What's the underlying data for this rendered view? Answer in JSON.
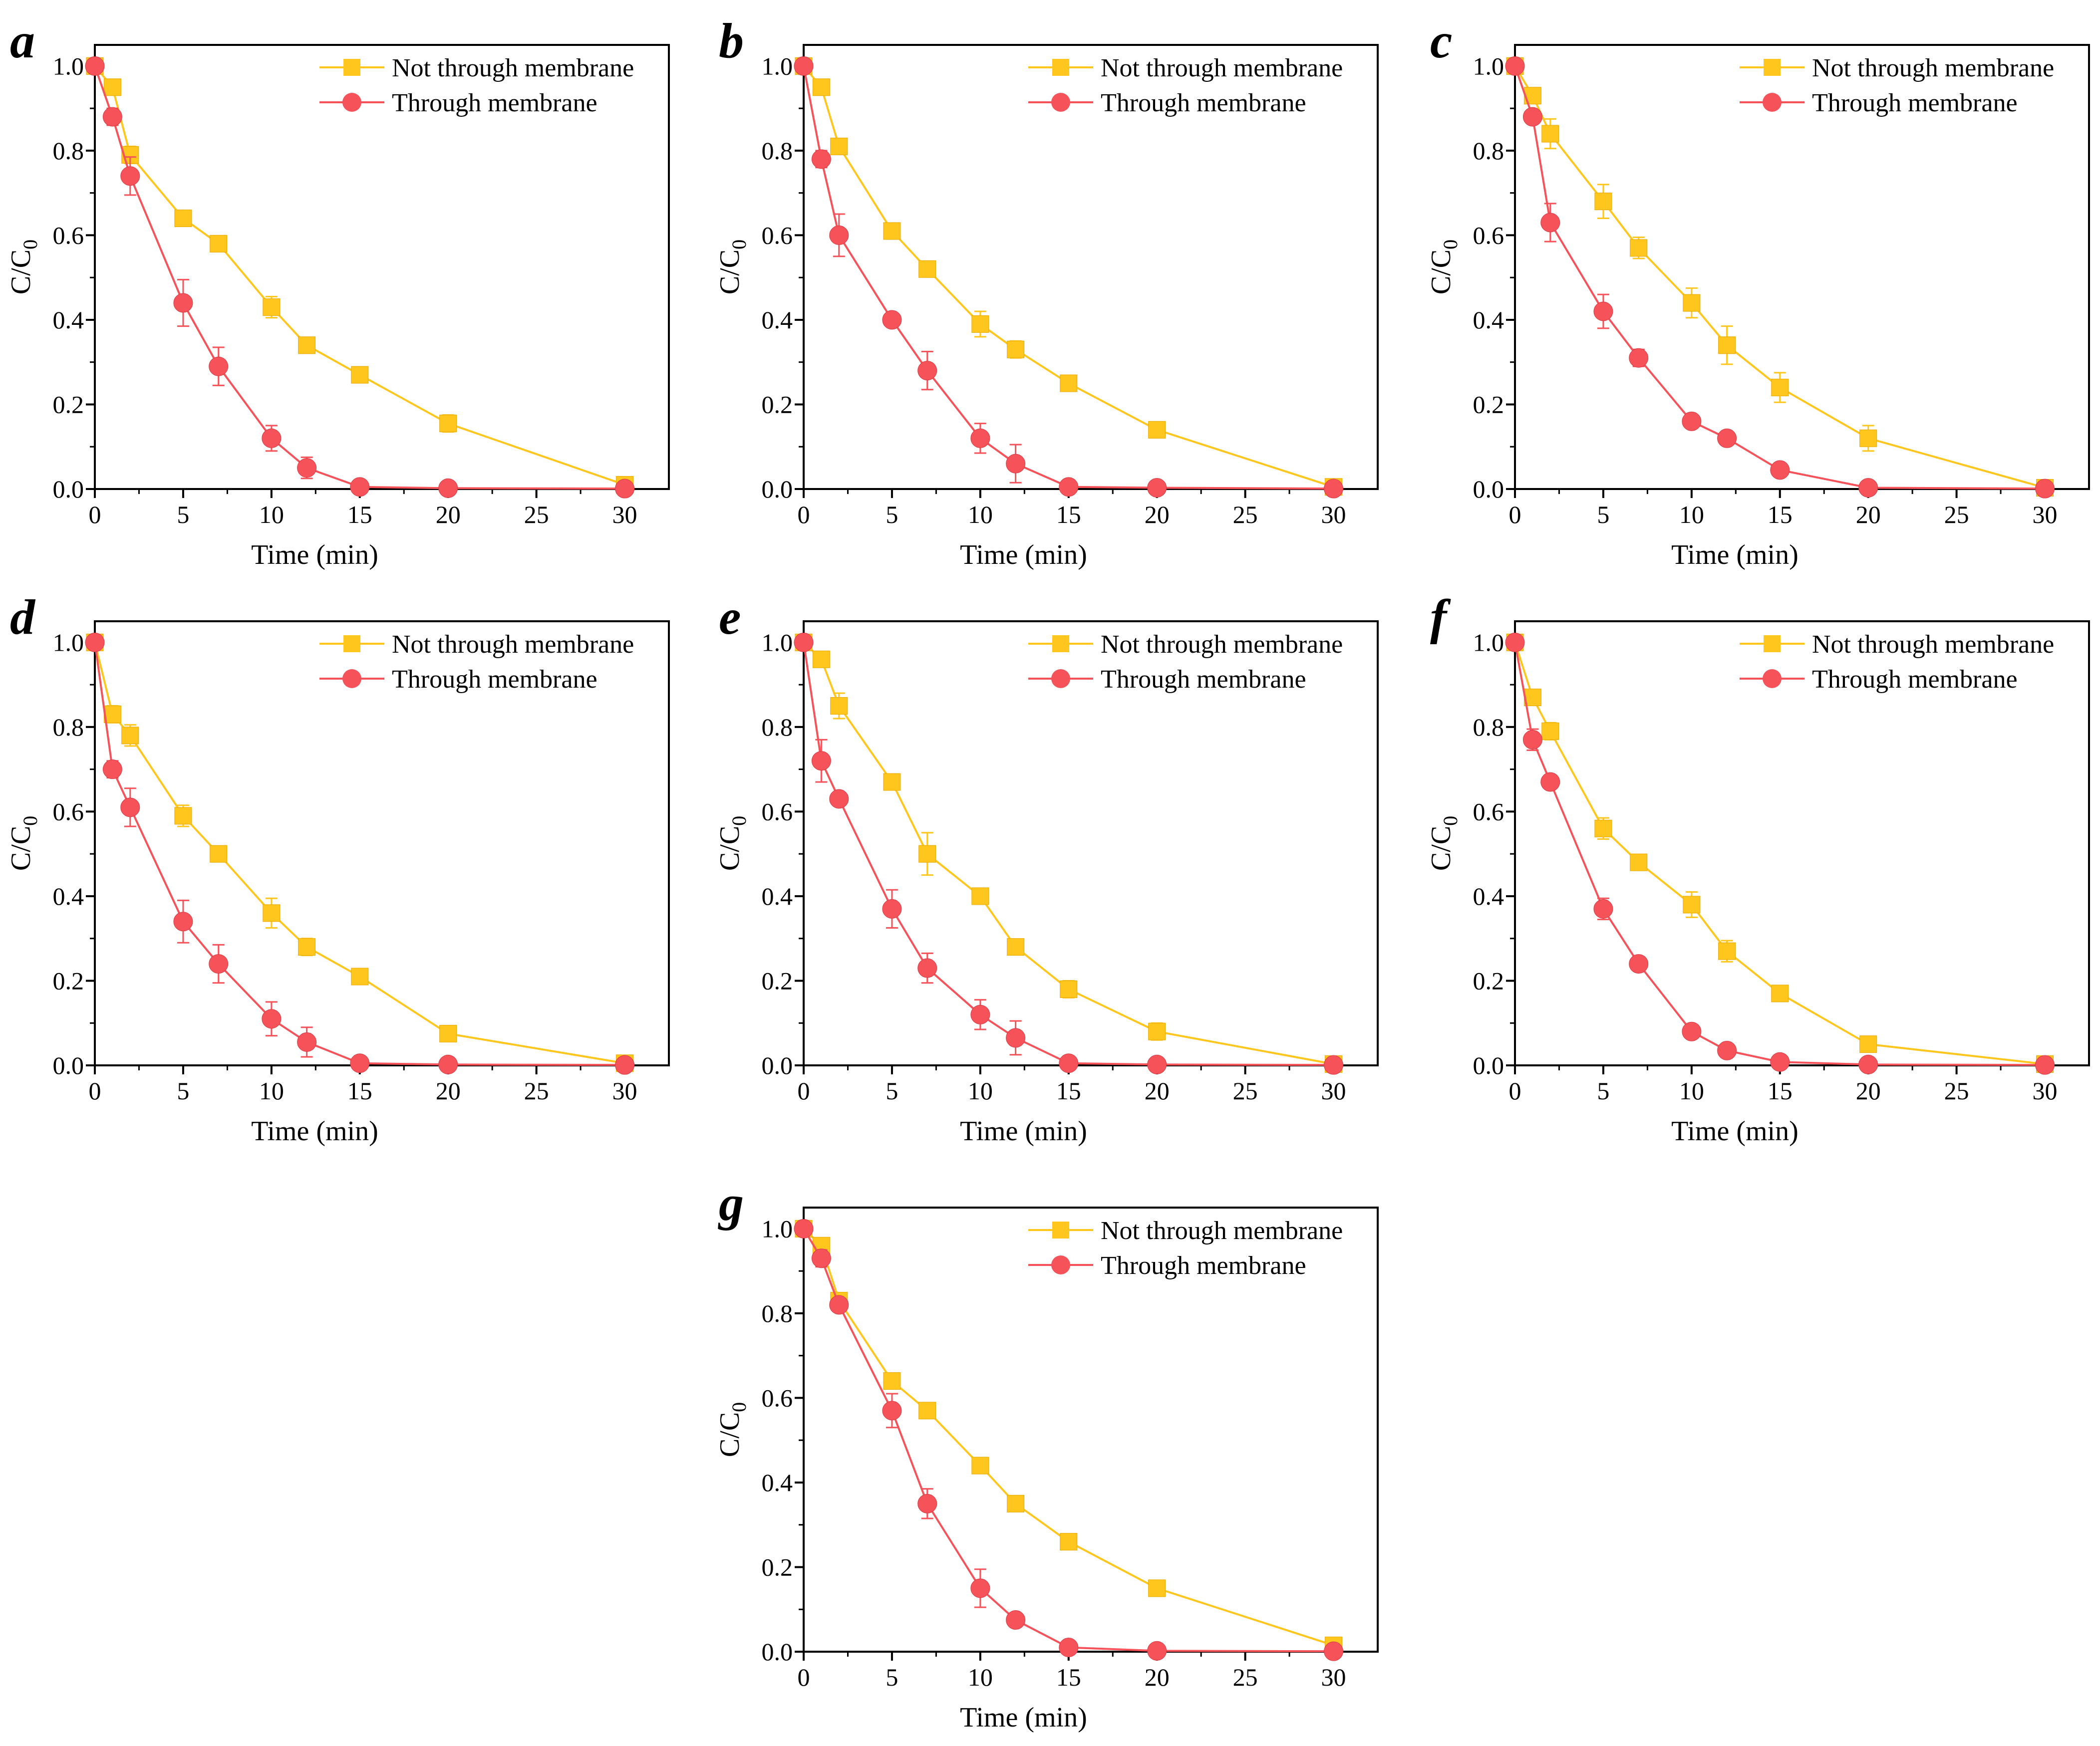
{
  "figure": {
    "colors": {
      "not_through": "#FFC61E",
      "through": "#F5525A",
      "axis": "#000000"
    },
    "legend_labels": {
      "not_through": "Not through membrane",
      "through": "Through membrane"
    },
    "xlabel": "Time (min)",
    "ylabel_main": "C/C",
    "ylabel_sub": "0"
  },
  "chart_data": [
    {
      "panel": "a",
      "type": "line",
      "x": [
        0,
        1,
        2,
        5,
        7,
        10,
        12,
        15,
        20,
        30
      ],
      "xticks": [
        0,
        5,
        10,
        15,
        20,
        25,
        30
      ],
      "yticks": [
        "0.0",
        "0.2",
        "0.4",
        "0.6",
        "0.8",
        "1.0"
      ],
      "xlim": [
        0,
        32.5
      ],
      "ylim": [
        0,
        1.05
      ],
      "series": [
        {
          "name": "Not through membrane",
          "key": "not_through",
          "values": [
            1.0,
            0.95,
            0.79,
            0.64,
            0.58,
            0.43,
            0.34,
            0.27,
            0.155,
            0.01
          ],
          "err": [
            0,
            0.01,
            0.02,
            0.01,
            0.01,
            0.025,
            0.01,
            0.01,
            0.02,
            0.01
          ]
        },
        {
          "name": "Through membrane",
          "key": "through",
          "values": [
            1.0,
            0.88,
            0.74,
            0.44,
            0.29,
            0.12,
            0.05,
            0.005,
            0.002,
            0.001
          ],
          "err": [
            0,
            0.02,
            0.045,
            0.055,
            0.045,
            0.03,
            0.025,
            0,
            0,
            0
          ]
        }
      ]
    },
    {
      "panel": "b",
      "type": "line",
      "x": [
        0,
        1,
        2,
        5,
        7,
        10,
        12,
        15,
        20,
        30
      ],
      "xticks": [
        0,
        5,
        10,
        15,
        20,
        25,
        30
      ],
      "yticks": [
        "0.0",
        "0.2",
        "0.4",
        "0.6",
        "0.8",
        "1.0"
      ],
      "xlim": [
        0,
        32.5
      ],
      "ylim": [
        0,
        1.05
      ],
      "series": [
        {
          "name": "Not through membrane",
          "key": "not_through",
          "values": [
            1.0,
            0.95,
            0.81,
            0.61,
            0.52,
            0.39,
            0.33,
            0.25,
            0.14,
            0.005
          ],
          "err": [
            0,
            0.01,
            0.015,
            0.015,
            0.015,
            0.03,
            0.02,
            0.015,
            0.01,
            0.01
          ]
        },
        {
          "name": "Through membrane",
          "key": "through",
          "values": [
            1.0,
            0.78,
            0.6,
            0.4,
            0.28,
            0.12,
            0.06,
            0.005,
            0.003,
            0.001
          ],
          "err": [
            0,
            0.02,
            0.05,
            0.01,
            0.045,
            0.035,
            0.045,
            0,
            0,
            0
          ]
        }
      ]
    },
    {
      "panel": "c",
      "type": "line",
      "x": [
        0,
        1,
        2,
        5,
        7,
        10,
        12,
        15,
        20,
        30
      ],
      "xticks": [
        0,
        5,
        10,
        15,
        20,
        25,
        30
      ],
      "yticks": [
        "0.0",
        "0.2",
        "0.4",
        "0.6",
        "0.8",
        "1.0"
      ],
      "xlim": [
        0,
        32.5
      ],
      "ylim": [
        0,
        1.05
      ],
      "series": [
        {
          "name": "Not through membrane",
          "key": "not_through",
          "values": [
            1.0,
            0.93,
            0.84,
            0.68,
            0.57,
            0.44,
            0.34,
            0.24,
            0.12,
            0.003
          ],
          "err": [
            0,
            0.015,
            0.035,
            0.04,
            0.025,
            0.035,
            0.045,
            0.035,
            0.03,
            0.005
          ]
        },
        {
          "name": "Through membrane",
          "key": "through",
          "values": [
            1.0,
            0.88,
            0.63,
            0.42,
            0.31,
            0.16,
            0.12,
            0.045,
            0.003,
            0.001
          ],
          "err": [
            0,
            0.015,
            0.045,
            0.04,
            0.02,
            0.01,
            0.01,
            0.005,
            0,
            0
          ]
        }
      ]
    },
    {
      "panel": "d",
      "type": "line",
      "x": [
        0,
        1,
        2,
        5,
        7,
        10,
        12,
        15,
        20,
        30
      ],
      "xticks": [
        0,
        5,
        10,
        15,
        20,
        25,
        30
      ],
      "yticks": [
        "0.0",
        "0.2",
        "0.4",
        "0.6",
        "0.8",
        "1.0"
      ],
      "xlim": [
        0,
        32.5
      ],
      "ylim": [
        0,
        1.05
      ],
      "series": [
        {
          "name": "Not through membrane",
          "key": "not_through",
          "values": [
            1.0,
            0.83,
            0.78,
            0.59,
            0.5,
            0.36,
            0.28,
            0.21,
            0.075,
            0.005
          ],
          "err": [
            0,
            0.02,
            0.025,
            0.025,
            0.01,
            0.035,
            0.02,
            0.01,
            0.01,
            0.01
          ]
        },
        {
          "name": "Through membrane",
          "key": "through",
          "values": [
            1.0,
            0.7,
            0.61,
            0.34,
            0.24,
            0.11,
            0.055,
            0.005,
            0.002,
            0.001
          ],
          "err": [
            0,
            0.02,
            0.045,
            0.05,
            0.045,
            0.04,
            0.035,
            0,
            0,
            0
          ]
        }
      ]
    },
    {
      "panel": "e",
      "type": "line",
      "x": [
        0,
        1,
        2,
        5,
        7,
        10,
        12,
        15,
        20,
        30
      ],
      "xticks": [
        0,
        5,
        10,
        15,
        20,
        25,
        30
      ],
      "yticks": [
        "0.0",
        "0.2",
        "0.4",
        "0.6",
        "0.8",
        "1.0"
      ],
      "xlim": [
        0,
        32.5
      ],
      "ylim": [
        0,
        1.05
      ],
      "series": [
        {
          "name": "Not through membrane",
          "key": "not_through",
          "values": [
            1.0,
            0.96,
            0.85,
            0.67,
            0.5,
            0.4,
            0.28,
            0.18,
            0.08,
            0.003
          ],
          "err": [
            0,
            0.01,
            0.03,
            0.01,
            0.05,
            0.01,
            0.015,
            0.02,
            0.02,
            0.005
          ]
        },
        {
          "name": "Through membrane",
          "key": "through",
          "values": [
            1.0,
            0.72,
            0.63,
            0.37,
            0.23,
            0.12,
            0.065,
            0.005,
            0.002,
            0.001
          ],
          "err": [
            0,
            0.05,
            0.01,
            0.045,
            0.035,
            0.035,
            0.04,
            0,
            0,
            0
          ]
        }
      ]
    },
    {
      "panel": "f",
      "type": "line",
      "x": [
        0,
        1,
        2,
        5,
        7,
        10,
        12,
        15,
        20,
        30
      ],
      "xticks": [
        0,
        5,
        10,
        15,
        20,
        25,
        30
      ],
      "yticks": [
        "0.0",
        "0.2",
        "0.4",
        "0.6",
        "0.8",
        "1.0"
      ],
      "xlim": [
        0,
        32.5
      ],
      "ylim": [
        0,
        1.05
      ],
      "series": [
        {
          "name": "Not through membrane",
          "key": "not_through",
          "values": [
            1.0,
            0.87,
            0.79,
            0.56,
            0.48,
            0.38,
            0.27,
            0.17,
            0.05,
            0.003
          ],
          "err": [
            0,
            0.015,
            0.02,
            0.025,
            0.01,
            0.03,
            0.025,
            0.015,
            0.01,
            0.005
          ]
        },
        {
          "name": "Through membrane",
          "key": "through",
          "values": [
            1.0,
            0.77,
            0.67,
            0.37,
            0.24,
            0.08,
            0.035,
            0.008,
            0.002,
            0.001
          ],
          "err": [
            0,
            0.025,
            0.01,
            0.025,
            0.01,
            0.01,
            0.01,
            0,
            0,
            0
          ]
        }
      ]
    },
    {
      "panel": "g",
      "type": "line",
      "x": [
        0,
        1,
        2,
        5,
        7,
        10,
        12,
        15,
        20,
        30
      ],
      "xticks": [
        0,
        5,
        10,
        15,
        20,
        25,
        30
      ],
      "yticks": [
        "0.0",
        "0.2",
        "0.4",
        "0.6",
        "0.8",
        "1.0"
      ],
      "xlim": [
        0,
        32.5
      ],
      "ylim": [
        0,
        1.05
      ],
      "series": [
        {
          "name": "Not through membrane",
          "key": "not_through",
          "values": [
            1.0,
            0.96,
            0.83,
            0.64,
            0.57,
            0.44,
            0.35,
            0.26,
            0.15,
            0.015
          ],
          "err": [
            0,
            0.01,
            0.015,
            0.015,
            0.01,
            0.01,
            0.01,
            0.015,
            0.01,
            0.01
          ]
        },
        {
          "name": "Through membrane",
          "key": "through",
          "values": [
            1.0,
            0.93,
            0.82,
            0.57,
            0.35,
            0.15,
            0.075,
            0.01,
            0.002,
            0.001
          ],
          "err": [
            0,
            0.02,
            0.015,
            0.04,
            0.035,
            0.045,
            0.01,
            0,
            0,
            0
          ]
        }
      ]
    }
  ]
}
